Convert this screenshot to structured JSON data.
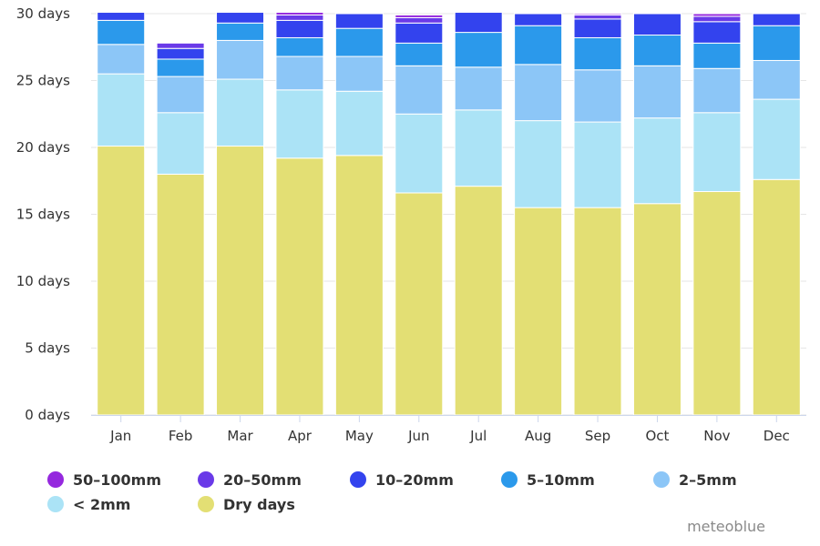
{
  "chart_data": {
    "type": "bar",
    "stacked": true,
    "categories": [
      "Jan",
      "Feb",
      "Mar",
      "Apr",
      "May",
      "Jun",
      "Jul",
      "Aug",
      "Sep",
      "Oct",
      "Nov",
      "Dec"
    ],
    "series": [
      {
        "name": "Dry days",
        "color": "#e3df74",
        "values": [
          20.1,
          18.0,
          20.1,
          19.2,
          19.4,
          16.6,
          17.1,
          15.5,
          15.5,
          15.8,
          16.7,
          17.6
        ]
      },
      {
        "name": "< 2mm",
        "color": "#abe3f6",
        "values": [
          5.4,
          4.6,
          5.0,
          5.1,
          4.8,
          5.9,
          5.7,
          6.5,
          6.4,
          6.4,
          5.9,
          6.0
        ]
      },
      {
        "name": "2-5mm",
        "color": "#8cc6f7",
        "values": [
          2.2,
          2.7,
          2.9,
          2.5,
          2.6,
          3.6,
          3.2,
          4.2,
          3.9,
          3.9,
          3.3,
          2.9
        ]
      },
      {
        "name": "5-10mm",
        "color": "#2b99eb",
        "values": [
          1.8,
          1.3,
          1.3,
          1.4,
          2.1,
          1.7,
          2.6,
          2.9,
          2.4,
          2.3,
          1.9,
          2.6
        ]
      },
      {
        "name": "10-20mm",
        "color": "#3343ee",
        "values": [
          0.6,
          0.8,
          0.8,
          1.3,
          1.1,
          1.5,
          1.5,
          0.9,
          1.4,
          1.6,
          1.6,
          0.9
        ]
      },
      {
        "name": "20-50mm",
        "color": "#6a3ae8",
        "values": [
          0.0,
          0.4,
          0.0,
          0.4,
          0.0,
          0.4,
          0.0,
          0.0,
          0.3,
          0.0,
          0.4,
          0.0
        ]
      },
      {
        "name": "50-100mm",
        "color": "#9528de",
        "values": [
          0.0,
          0.0,
          0.0,
          0.2,
          0.0,
          0.2,
          0.0,
          0.0,
          0.1,
          0.0,
          0.2,
          0.0
        ]
      }
    ],
    "legend_order": [
      "50-100mm",
      "20-50mm",
      "10-20mm",
      "5-10mm",
      "2-5mm",
      "< 2mm",
      "Dry days"
    ],
    "ylim": [
      0,
      30
    ],
    "yticks": [
      0,
      5,
      10,
      15,
      20,
      25,
      30
    ],
    "ytick_labels": [
      "0 days",
      "5 days",
      "10 days",
      "15 days",
      "20 days",
      "25 days",
      "30 days"
    ],
    "grid": true,
    "legend_position": "bottom",
    "title": "",
    "xlabel": "",
    "ylabel": ""
  },
  "legend": [
    {
      "label": "50–100mm",
      "color": "#9528de"
    },
    {
      "label": "20–50mm",
      "color": "#6a3ae8"
    },
    {
      "label": "10–20mm",
      "color": "#3343ee"
    },
    {
      "label": "5–10mm",
      "color": "#2b99eb"
    },
    {
      "label": "2–5mm",
      "color": "#8cc6f7"
    },
    {
      "label": "< 2mm",
      "color": "#abe3f6"
    },
    {
      "label": "Dry days",
      "color": "#e3df74"
    }
  ],
  "brand": "meteoblue"
}
